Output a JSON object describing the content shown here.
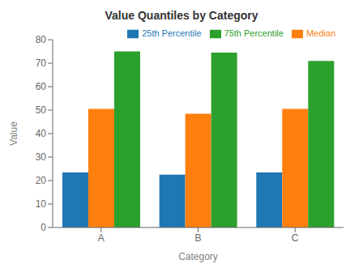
{
  "chart_data": {
    "type": "bar",
    "title": "Value Quantiles by Category",
    "xlabel": "Category",
    "ylabel": "Value",
    "categories": [
      "A",
      "B",
      "C"
    ],
    "series": [
      {
        "name": "25th Percentile",
        "color": "#1f77b4",
        "values": [
          23.5,
          22.5,
          23.5
        ]
      },
      {
        "name": "Median",
        "color": "#ff7f0e",
        "values": [
          50.5,
          48.5,
          50.5
        ]
      },
      {
        "name": "75th Percentile",
        "color": "#2ca02c",
        "values": [
          75.0,
          74.5,
          71.0
        ]
      }
    ],
    "ylim": [
      0,
      80
    ],
    "yticks": [
      0,
      10,
      20,
      30,
      40,
      50,
      60,
      70,
      80
    ],
    "grid": false,
    "legend": "upper right"
  }
}
